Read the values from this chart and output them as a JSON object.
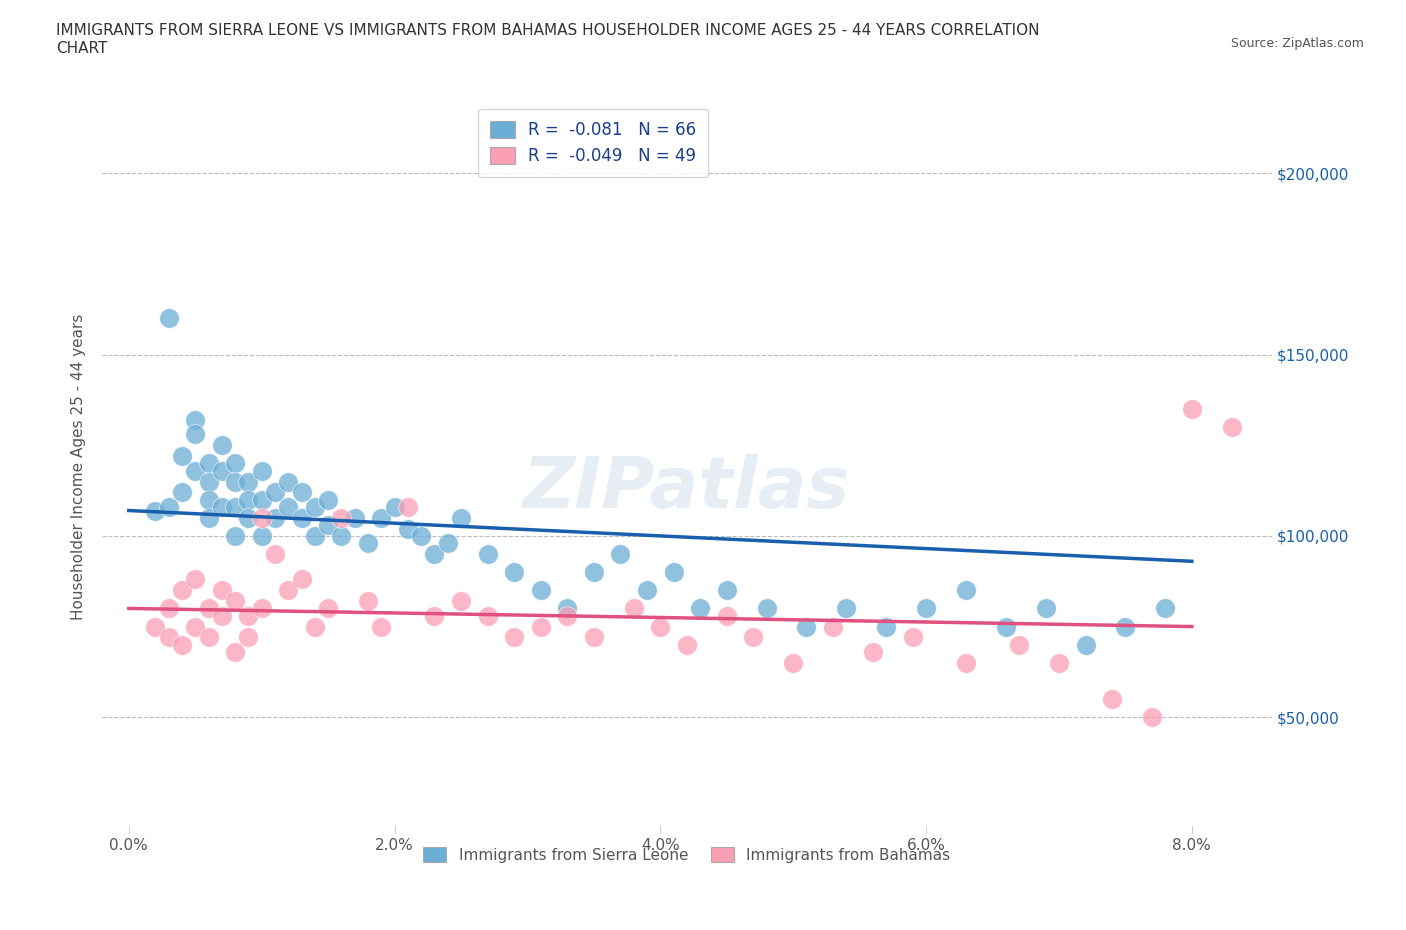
{
  "title": "IMMIGRANTS FROM SIERRA LEONE VS IMMIGRANTS FROM BAHAMAS HOUSEHOLDER INCOME AGES 25 - 44 YEARS CORRELATION\nCHART",
  "source_text": "Source: ZipAtlas.com",
  "ylabel": "Householder Income Ages 25 - 44 years",
  "xlabel_ticks": [
    "0.0%",
    "2.0%",
    "4.0%",
    "6.0%",
    "8.0%"
  ],
  "xlabel_vals": [
    0.0,
    0.02,
    0.04,
    0.06,
    0.08
  ],
  "ytick_labels": [
    "$50,000",
    "$100,000",
    "$150,000",
    "$200,000"
  ],
  "ytick_vals": [
    50000,
    100000,
    150000,
    200000
  ],
  "xlim": [
    -0.002,
    0.086
  ],
  "ylim": [
    20000,
    218000
  ],
  "sierra_leone_color": "#6baed6",
  "bahamas_color": "#fa9fb5",
  "sierra_leone_R": -0.081,
  "sierra_leone_N": 66,
  "bahamas_R": -0.049,
  "bahamas_N": 49,
  "sierra_leone_label": "Immigrants from Sierra Leone",
  "bahamas_label": "Immigrants from Bahamas",
  "legend_R_color": "#1a3e8c",
  "trend_sierra_leone_color": "#1a5fad",
  "trend_bahamas_color": "#e05080",
  "watermark": "ZIPatlas",
  "sierra_leone_x": [
    0.002,
    0.003,
    0.003,
    0.004,
    0.004,
    0.005,
    0.005,
    0.005,
    0.006,
    0.006,
    0.006,
    0.006,
    0.007,
    0.007,
    0.007,
    0.008,
    0.008,
    0.008,
    0.008,
    0.009,
    0.009,
    0.009,
    0.01,
    0.01,
    0.01,
    0.011,
    0.011,
    0.012,
    0.012,
    0.013,
    0.013,
    0.014,
    0.014,
    0.015,
    0.015,
    0.016,
    0.017,
    0.018,
    0.019,
    0.02,
    0.021,
    0.022,
    0.023,
    0.024,
    0.025,
    0.027,
    0.029,
    0.031,
    0.033,
    0.035,
    0.037,
    0.039,
    0.041,
    0.043,
    0.045,
    0.048,
    0.051,
    0.054,
    0.057,
    0.06,
    0.063,
    0.066,
    0.069,
    0.072,
    0.075,
    0.078
  ],
  "sierra_leone_y": [
    107000,
    160000,
    108000,
    122000,
    112000,
    132000,
    128000,
    118000,
    120000,
    115000,
    110000,
    105000,
    125000,
    118000,
    108000,
    120000,
    115000,
    108000,
    100000,
    115000,
    110000,
    105000,
    118000,
    110000,
    100000,
    112000,
    105000,
    115000,
    108000,
    112000,
    105000,
    108000,
    100000,
    110000,
    103000,
    100000,
    105000,
    98000,
    105000,
    108000,
    102000,
    100000,
    95000,
    98000,
    105000,
    95000,
    90000,
    85000,
    80000,
    90000,
    95000,
    85000,
    90000,
    80000,
    85000,
    80000,
    75000,
    80000,
    75000,
    80000,
    85000,
    75000,
    80000,
    70000,
    75000,
    80000
  ],
  "bahamas_x": [
    0.002,
    0.003,
    0.003,
    0.004,
    0.004,
    0.005,
    0.005,
    0.006,
    0.006,
    0.007,
    0.007,
    0.008,
    0.008,
    0.009,
    0.009,
    0.01,
    0.01,
    0.011,
    0.012,
    0.013,
    0.014,
    0.015,
    0.016,
    0.018,
    0.019,
    0.021,
    0.023,
    0.025,
    0.027,
    0.029,
    0.031,
    0.033,
    0.035,
    0.038,
    0.04,
    0.042,
    0.045,
    0.047,
    0.05,
    0.053,
    0.056,
    0.059,
    0.063,
    0.067,
    0.07,
    0.074,
    0.077,
    0.08,
    0.083
  ],
  "bahamas_y": [
    75000,
    80000,
    72000,
    85000,
    70000,
    88000,
    75000,
    80000,
    72000,
    85000,
    78000,
    82000,
    68000,
    78000,
    72000,
    105000,
    80000,
    95000,
    85000,
    88000,
    75000,
    80000,
    105000,
    82000,
    75000,
    108000,
    78000,
    82000,
    78000,
    72000,
    75000,
    78000,
    72000,
    80000,
    75000,
    70000,
    78000,
    72000,
    65000,
    75000,
    68000,
    72000,
    65000,
    70000,
    65000,
    55000,
    50000,
    135000,
    130000
  ],
  "sl_trend_x": [
    0.0,
    0.08
  ],
  "sl_trend_y": [
    107000,
    93000
  ],
  "bah_trend_x": [
    0.0,
    0.08
  ],
  "bah_trend_y": [
    80000,
    75000
  ]
}
